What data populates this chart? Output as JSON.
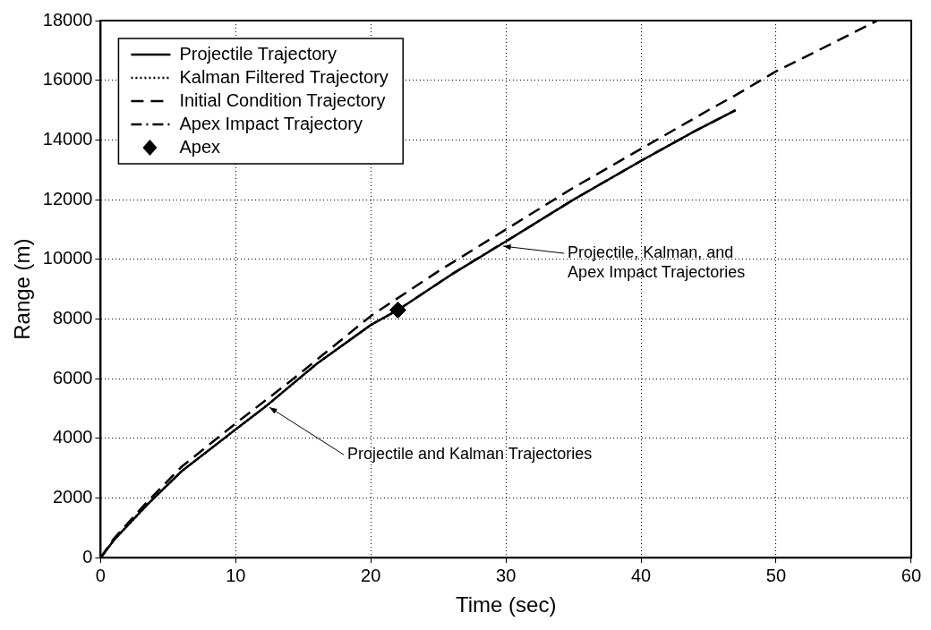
{
  "chart_data": {
    "type": "line",
    "xlabel": "Time (sec)",
    "ylabel": "Range (m)",
    "xlim": [
      0,
      60
    ],
    "xticks": [
      0,
      10,
      20,
      30,
      40,
      50,
      60
    ],
    "ylim": [
      0,
      18000
    ],
    "yticks": [
      0,
      2000,
      4000,
      6000,
      8000,
      10000,
      12000,
      14000,
      16000,
      18000
    ],
    "grid": true,
    "legend": "top left",
    "marker": "none",
    "series": [
      {
        "name": "Projectile Trajectory",
        "type": "line",
        "line_style": "solid",
        "color": "#000000",
        "x": [
          0,
          1,
          3.5,
          6,
          10,
          12.3,
          16,
          20,
          22,
          26,
          30,
          35,
          40,
          44,
          47
        ],
        "values": [
          0,
          600,
          1800,
          2900,
          4300,
          5100,
          6500,
          7800,
          8300,
          9500,
          10600,
          12000,
          13300,
          14300,
          15000
        ]
      },
      {
        "name": "Kalman Filtered Trajectory",
        "type": "line",
        "line_style": "dotted",
        "color": "#000000",
        "x": [
          0,
          1,
          3.5,
          6,
          10,
          12.3,
          16,
          20,
          22
        ],
        "values": [
          0,
          600,
          1800,
          2900,
          4300,
          5100,
          6500,
          7800,
          8300
        ]
      },
      {
        "name": "Initial Condition Trajectory",
        "type": "line",
        "line_style": "dashed",
        "color": "#000000",
        "x": [
          0,
          1,
          3.5,
          6,
          10,
          14,
          20,
          25,
          30,
          35,
          40,
          45,
          47,
          50,
          54,
          57.5
        ],
        "values": [
          0,
          650,
          1900,
          3050,
          4500,
          5900,
          8100,
          9600,
          11000,
          12400,
          13700,
          15000,
          15500,
          16300,
          17200,
          18000
        ]
      },
      {
        "name": "Apex Impact Trajectory",
        "type": "line",
        "line_style": "dashdot",
        "color": "#000000",
        "x": [
          22,
          26,
          29.6,
          30,
          35,
          40,
          44,
          47
        ],
        "values": [
          8300,
          9500,
          10500,
          10600,
          12000,
          13300,
          14300,
          15000
        ]
      },
      {
        "name": "Apex",
        "type": "scatter",
        "marker": "diamond",
        "color": "#000000",
        "x": [
          22
        ],
        "values": [
          8300
        ]
      }
    ],
    "annotations": [
      {
        "text": "Projectile and Kalman Trajectories",
        "x": 12.3,
        "y": 5100
      },
      {
        "text": "Projectile, Kalman, and Apex Impact Trajectories",
        "x": 29.6,
        "y": 10500
      }
    ]
  }
}
